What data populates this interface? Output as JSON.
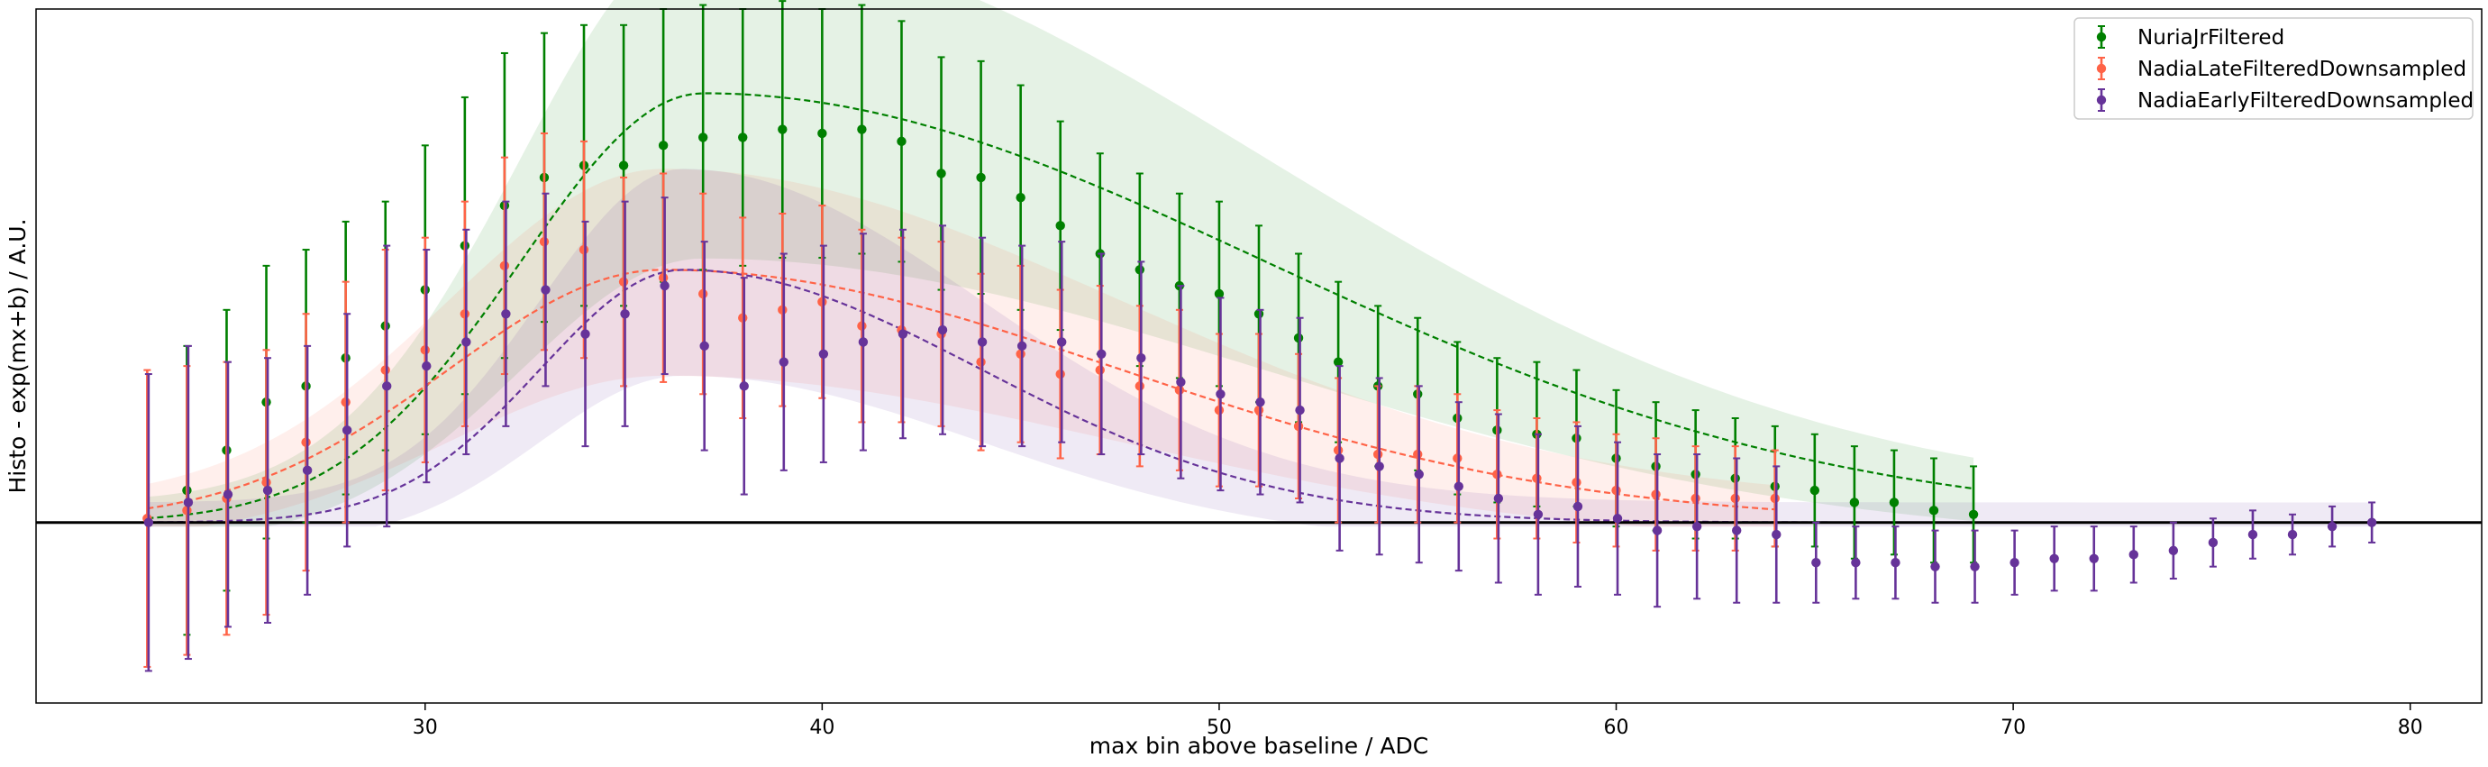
{
  "chart_data": {
    "type": "scatter",
    "title": "",
    "xlabel": "max bin above baseline / ADC",
    "ylabel": "Histo - exp(mx+b) / A.U.",
    "xlim": [
      20.2,
      81.8
    ],
    "ylim": [
      -0.45,
      1.28
    ],
    "xticks": [
      30,
      40,
      50,
      60,
      70,
      80
    ],
    "grid": false,
    "legend_position": "top-right",
    "baseline_y": 0,
    "series": [
      {
        "name": "NuriaJrFiltered",
        "color": "#008000",
        "fit": {
          "amplitude": 1.07,
          "peak": 37,
          "sigma_left": 4.6,
          "sigma_right": 14.2,
          "x_start": 23,
          "x_end": 69
        },
        "points": [
          {
            "x": 24,
            "y": 0.08,
            "err": 0.36
          },
          {
            "x": 25,
            "y": 0.18,
            "err": 0.35
          },
          {
            "x": 26,
            "y": 0.3,
            "err": 0.34
          },
          {
            "x": 27,
            "y": 0.34,
            "err": 0.34
          },
          {
            "x": 28,
            "y": 0.41,
            "err": 0.34
          },
          {
            "x": 29,
            "y": 0.49,
            "err": 0.31
          },
          {
            "x": 30,
            "y": 0.58,
            "err": 0.36
          },
          {
            "x": 31,
            "y": 0.69,
            "err": 0.37
          },
          {
            "x": 32,
            "y": 0.79,
            "err": 0.38
          },
          {
            "x": 33,
            "y": 0.86,
            "err": 0.36
          },
          {
            "x": 34,
            "y": 0.89,
            "err": 0.35
          },
          {
            "x": 35,
            "y": 0.89,
            "err": 0.35
          },
          {
            "x": 36,
            "y": 0.94,
            "err": 0.34
          },
          {
            "x": 37,
            "y": 0.96,
            "err": 0.33
          },
          {
            "x": 38,
            "y": 0.96,
            "err": 0.32
          },
          {
            "x": 39,
            "y": 0.98,
            "err": 0.32
          },
          {
            "x": 40,
            "y": 0.97,
            "err": 0.31
          },
          {
            "x": 41,
            "y": 0.98,
            "err": 0.31
          },
          {
            "x": 42,
            "y": 0.95,
            "err": 0.3
          },
          {
            "x": 43,
            "y": 0.87,
            "err": 0.29
          },
          {
            "x": 44,
            "y": 0.86,
            "err": 0.29
          },
          {
            "x": 45,
            "y": 0.81,
            "err": 0.28
          },
          {
            "x": 46,
            "y": 0.74,
            "err": 0.26
          },
          {
            "x": 47,
            "y": 0.67,
            "err": 0.25
          },
          {
            "x": 48,
            "y": 0.63,
            "err": 0.24
          },
          {
            "x": 49,
            "y": 0.59,
            "err": 0.23
          },
          {
            "x": 50,
            "y": 0.57,
            "err": 0.23
          },
          {
            "x": 51,
            "y": 0.52,
            "err": 0.22
          },
          {
            "x": 52,
            "y": 0.46,
            "err": 0.21
          },
          {
            "x": 53,
            "y": 0.4,
            "err": 0.2
          },
          {
            "x": 54,
            "y": 0.34,
            "err": 0.2
          },
          {
            "x": 55,
            "y": 0.32,
            "err": 0.19
          },
          {
            "x": 56,
            "y": 0.26,
            "err": 0.19
          },
          {
            "x": 57,
            "y": 0.23,
            "err": 0.18
          },
          {
            "x": 58,
            "y": 0.22,
            "err": 0.18
          },
          {
            "x": 59,
            "y": 0.21,
            "err": 0.17
          },
          {
            "x": 60,
            "y": 0.16,
            "err": 0.17
          },
          {
            "x": 61,
            "y": 0.14,
            "err": 0.16
          },
          {
            "x": 62,
            "y": 0.12,
            "err": 0.16
          },
          {
            "x": 63,
            "y": 0.11,
            "err": 0.15
          },
          {
            "x": 64,
            "y": 0.09,
            "err": 0.15
          },
          {
            "x": 65,
            "y": 0.08,
            "err": 0.14
          },
          {
            "x": 66,
            "y": 0.05,
            "err": 0.14
          },
          {
            "x": 67,
            "y": 0.05,
            "err": 0.13
          },
          {
            "x": 68,
            "y": 0.03,
            "err": 0.13
          },
          {
            "x": 69,
            "y": 0.02,
            "err": 0.12
          }
        ]
      },
      {
        "name": "NadiaLateFilteredDownsampled",
        "color": "#ff6347",
        "fit": {
          "amplitude": 0.63,
          "peak": 36,
          "sigma_left": 5.4,
          "sigma_right": 11.5,
          "x_start": 23,
          "x_end": 64
        },
        "points": [
          {
            "x": 23,
            "y": 0.01,
            "err": 0.37
          },
          {
            "x": 24,
            "y": 0.03,
            "err": 0.36
          },
          {
            "x": 25,
            "y": 0.06,
            "err": 0.34
          },
          {
            "x": 26,
            "y": 0.1,
            "err": 0.33
          },
          {
            "x": 27,
            "y": 0.2,
            "err": 0.32
          },
          {
            "x": 28,
            "y": 0.3,
            "err": 0.3
          },
          {
            "x": 29,
            "y": 0.38,
            "err": 0.3
          },
          {
            "x": 30,
            "y": 0.43,
            "err": 0.28
          },
          {
            "x": 31,
            "y": 0.52,
            "err": 0.28
          },
          {
            "x": 32,
            "y": 0.64,
            "err": 0.27
          },
          {
            "x": 33,
            "y": 0.7,
            "err": 0.27
          },
          {
            "x": 34,
            "y": 0.68,
            "err": 0.27
          },
          {
            "x": 35,
            "y": 0.6,
            "err": 0.26
          },
          {
            "x": 36,
            "y": 0.61,
            "err": 0.26
          },
          {
            "x": 37,
            "y": 0.57,
            "err": 0.25
          },
          {
            "x": 38,
            "y": 0.51,
            "err": 0.25
          },
          {
            "x": 39,
            "y": 0.53,
            "err": 0.24
          },
          {
            "x": 40,
            "y": 0.55,
            "err": 0.24
          },
          {
            "x": 41,
            "y": 0.49,
            "err": 0.24
          },
          {
            "x": 42,
            "y": 0.48,
            "err": 0.23
          },
          {
            "x": 43,
            "y": 0.47,
            "err": 0.23
          },
          {
            "x": 44,
            "y": 0.4,
            "err": 0.22
          },
          {
            "x": 45,
            "y": 0.42,
            "err": 0.22
          },
          {
            "x": 46,
            "y": 0.37,
            "err": 0.21
          },
          {
            "x": 47,
            "y": 0.38,
            "err": 0.21
          },
          {
            "x": 48,
            "y": 0.34,
            "err": 0.2
          },
          {
            "x": 49,
            "y": 0.33,
            "err": 0.2
          },
          {
            "x": 50,
            "y": 0.28,
            "err": 0.19
          },
          {
            "x": 51,
            "y": 0.28,
            "err": 0.19
          },
          {
            "x": 52,
            "y": 0.24,
            "err": 0.18
          },
          {
            "x": 53,
            "y": 0.18,
            "err": 0.18
          },
          {
            "x": 54,
            "y": 0.17,
            "err": 0.17
          },
          {
            "x": 55,
            "y": 0.17,
            "err": 0.17
          },
          {
            "x": 56,
            "y": 0.16,
            "err": 0.16
          },
          {
            "x": 57,
            "y": 0.12,
            "err": 0.16
          },
          {
            "x": 58,
            "y": 0.11,
            "err": 0.15
          },
          {
            "x": 59,
            "y": 0.1,
            "err": 0.15
          },
          {
            "x": 60,
            "y": 0.08,
            "err": 0.14
          },
          {
            "x": 61,
            "y": 0.07,
            "err": 0.14
          },
          {
            "x": 62,
            "y": 0.06,
            "err": 0.13
          },
          {
            "x": 63,
            "y": 0.06,
            "err": 0.13
          },
          {
            "x": 64,
            "y": 0.06,
            "err": 0.12
          }
        ]
      },
      {
        "name": "NadiaEarlyFilteredDownsampled",
        "color": "#663399",
        "fit": {
          "amplitude": 0.63,
          "peak": 36.5,
          "sigma_left": 3.6,
          "sigma_right": 7.5,
          "x_start": 23,
          "x_end": 79
        },
        "points": [
          {
            "x": 23,
            "y": 0.0,
            "err": 0.37
          },
          {
            "x": 24,
            "y": 0.05,
            "err": 0.39
          },
          {
            "x": 25,
            "y": 0.07,
            "err": 0.33
          },
          {
            "x": 26,
            "y": 0.08,
            "err": 0.33
          },
          {
            "x": 27,
            "y": 0.13,
            "err": 0.31
          },
          {
            "x": 28,
            "y": 0.23,
            "err": 0.29
          },
          {
            "x": 29,
            "y": 0.34,
            "err": 0.35
          },
          {
            "x": 30,
            "y": 0.39,
            "err": 0.29
          },
          {
            "x": 31,
            "y": 0.45,
            "err": 0.28
          },
          {
            "x": 32,
            "y": 0.52,
            "err": 0.28
          },
          {
            "x": 33,
            "y": 0.58,
            "err": 0.24
          },
          {
            "x": 34,
            "y": 0.47,
            "err": 0.28
          },
          {
            "x": 35,
            "y": 0.52,
            "err": 0.28
          },
          {
            "x": 36,
            "y": 0.59,
            "err": 0.22
          },
          {
            "x": 37,
            "y": 0.44,
            "err": 0.26
          },
          {
            "x": 38,
            "y": 0.34,
            "err": 0.27
          },
          {
            "x": 39,
            "y": 0.4,
            "err": 0.27
          },
          {
            "x": 40,
            "y": 0.42,
            "err": 0.27
          },
          {
            "x": 41,
            "y": 0.45,
            "err": 0.27
          },
          {
            "x": 42,
            "y": 0.47,
            "err": 0.26
          },
          {
            "x": 43,
            "y": 0.48,
            "err": 0.26
          },
          {
            "x": 44,
            "y": 0.45,
            "err": 0.26
          },
          {
            "x": 45,
            "y": 0.44,
            "err": 0.25
          },
          {
            "x": 46,
            "y": 0.45,
            "err": 0.25
          },
          {
            "x": 47,
            "y": 0.42,
            "err": 0.25
          },
          {
            "x": 48,
            "y": 0.41,
            "err": 0.24
          },
          {
            "x": 49,
            "y": 0.35,
            "err": 0.24
          },
          {
            "x": 50,
            "y": 0.32,
            "err": 0.24
          },
          {
            "x": 51,
            "y": 0.3,
            "err": 0.23
          },
          {
            "x": 52,
            "y": 0.28,
            "err": 0.23
          },
          {
            "x": 53,
            "y": 0.16,
            "err": 0.23
          },
          {
            "x": 54,
            "y": 0.14,
            "err": 0.22
          },
          {
            "x": 55,
            "y": 0.12,
            "err": 0.22
          },
          {
            "x": 56,
            "y": 0.09,
            "err": 0.21
          },
          {
            "x": 57,
            "y": 0.06,
            "err": 0.21
          },
          {
            "x": 58,
            "y": 0.02,
            "err": 0.2
          },
          {
            "x": 59,
            "y": 0.04,
            "err": 0.2
          },
          {
            "x": 60,
            "y": 0.01,
            "err": 0.19
          },
          {
            "x": 61,
            "y": -0.02,
            "err": 0.19
          },
          {
            "x": 62,
            "y": -0.01,
            "err": 0.18
          },
          {
            "x": 63,
            "y": -0.02,
            "err": 0.18
          },
          {
            "x": 64,
            "y": -0.03,
            "err": 0.17
          },
          {
            "x": 65,
            "y": -0.1,
            "err": 0.1
          },
          {
            "x": 66,
            "y": -0.1,
            "err": 0.09
          },
          {
            "x": 67,
            "y": -0.1,
            "err": 0.09
          },
          {
            "x": 68,
            "y": -0.11,
            "err": 0.09
          },
          {
            "x": 69,
            "y": -0.11,
            "err": 0.09
          },
          {
            "x": 70,
            "y": -0.1,
            "err": 0.08
          },
          {
            "x": 71,
            "y": -0.09,
            "err": 0.08
          },
          {
            "x": 72,
            "y": -0.09,
            "err": 0.08
          },
          {
            "x": 73,
            "y": -0.08,
            "err": 0.07
          },
          {
            "x": 74,
            "y": -0.07,
            "err": 0.07
          },
          {
            "x": 75,
            "y": -0.05,
            "err": 0.06
          },
          {
            "x": 76,
            "y": -0.03,
            "err": 0.06
          },
          {
            "x": 77,
            "y": -0.03,
            "err": 0.05
          },
          {
            "x": 78,
            "y": -0.01,
            "err": 0.05
          },
          {
            "x": 79,
            "y": 0.0,
            "err": 0.05
          }
        ]
      }
    ]
  }
}
